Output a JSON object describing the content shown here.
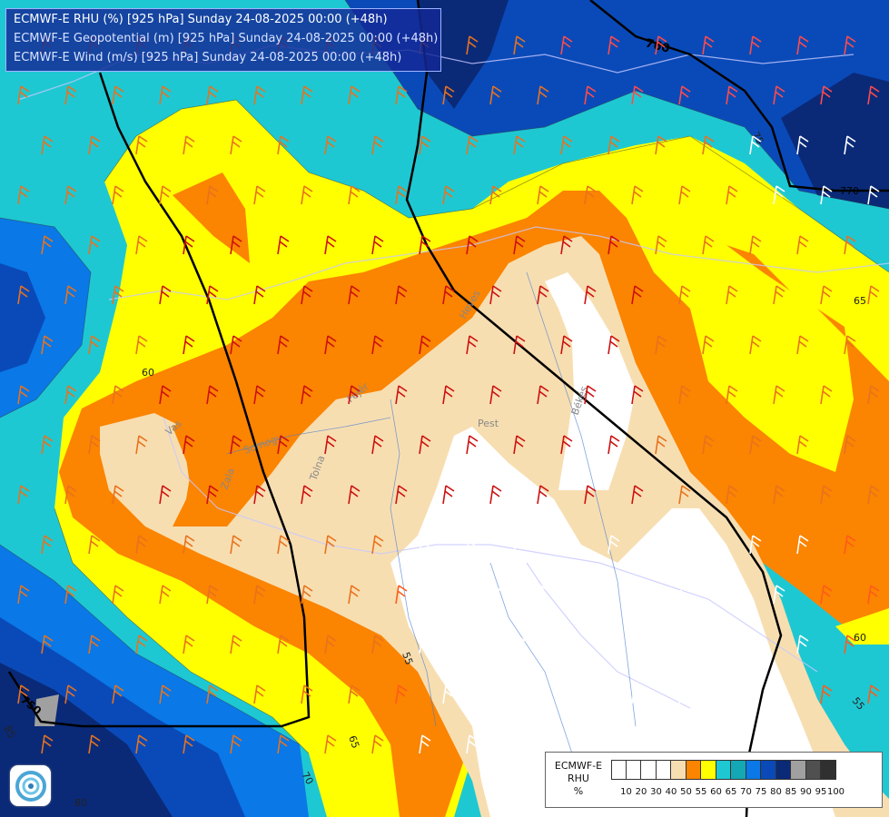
{
  "header": {
    "line1": "ECMWF-E RHU (%) [925 hPa] Sunday 24-08-2025 00:00 (+48h)",
    "line2": "ECMWF-E Geopotential (m) [925 hPa] Sunday 24-08-2025 00:00 (+48h)",
    "line3": "ECMWF-E Wind (m/s) [925 hPa] Sunday 24-08-2025 00:00 (+48h)"
  },
  "map": {
    "contour_labels": [
      "760",
      "750",
      "770",
      "75",
      "65",
      "60",
      "60",
      "55",
      "55",
      "65",
      "70",
      "80",
      "85"
    ],
    "geopotential_labels": [
      "760",
      "750"
    ],
    "place_labels": [
      "Pest",
      "Heves",
      "Békés",
      "Tolna",
      "Zala",
      "Somogy",
      "Fejér",
      "Vas"
    ]
  },
  "legend": {
    "title_line1": "ECMWF-E",
    "title_line2": "RHU",
    "title_line3": "%",
    "ticks": [
      "10",
      "20",
      "30",
      "40",
      "50",
      "55",
      "60",
      "65",
      "70",
      "75",
      "80",
      "85",
      "90",
      "95",
      "100"
    ],
    "colors": [
      "#ffffff",
      "#ffffff",
      "#ffffff",
      "#ffffff",
      "#f7deb1",
      "#fb8400",
      "#ffff00",
      "#1ec8d2",
      "#14a8b4",
      "#0a78e6",
      "#0a4ab8",
      "#0a2a78",
      "#a0a0a0",
      "#505050",
      "#303030"
    ]
  },
  "colors": {
    "white": "#ffffff",
    "beige": "#f7deb1",
    "orange": "#fb8400",
    "yellow": "#ffff00",
    "cyan": "#1ec8d2",
    "teal": "#14a8b4",
    "blue": "#0a78e6",
    "darkblue": "#0a4ab8",
    "navy": "#0a2a78"
  }
}
